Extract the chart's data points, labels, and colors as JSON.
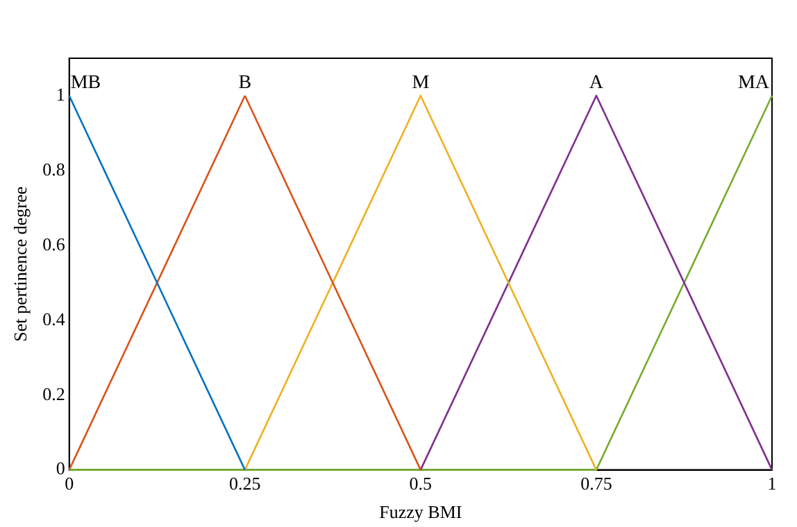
{
  "chart_data": {
    "type": "line",
    "xlabel": "Fuzzy BMI",
    "ylabel": "Set pertinence degree",
    "xlim": [
      0,
      1
    ],
    "xticks": [
      0,
      0.25,
      0.5,
      0.75,
      1
    ],
    "ylim": [
      0,
      1.1
    ],
    "yticks": [
      0,
      0.2,
      0.4,
      0.6,
      0.8,
      1
    ],
    "grid": false,
    "legend": false,
    "marker": "none",
    "line_style": "solid",
    "series": [
      {
        "color": "#0072bd",
        "x": [
          0,
          0.25
        ],
        "values": [
          1,
          0
        ]
      },
      {
        "color": "#d95319",
        "x": [
          0.25,
          0.5
        ],
        "values": [
          1,
          0
        ]
      },
      {
        "color": "#edb120",
        "x": [
          0.25,
          0.5,
          0.75
        ],
        "values": [
          0,
          1,
          0
        ]
      },
      {
        "color": "#7e2f8e",
        "x": [
          0.5,
          0.75,
          1
        ],
        "values": [
          0,
          1,
          0
        ]
      },
      {
        "color": "#77ac30",
        "x": [
          0,
          0.75,
          1
        ],
        "values": [
          0,
          0,
          1
        ]
      },
      {
        "color": "#d95319",
        "x": [
          0,
          0.25
        ],
        "values": [
          0,
          1
        ]
      }
    ],
    "annotations": [
      {
        "text": "MB",
        "x": 0,
        "y": 1
      },
      {
        "text": "B",
        "x": 0.25,
        "y": 1
      },
      {
        "text": "M",
        "x": 0.5,
        "y": 1
      },
      {
        "text": "A",
        "x": 0.75,
        "y": 1
      },
      {
        "text": "MA",
        "x": 1,
        "y": 1
      }
    ]
  }
}
